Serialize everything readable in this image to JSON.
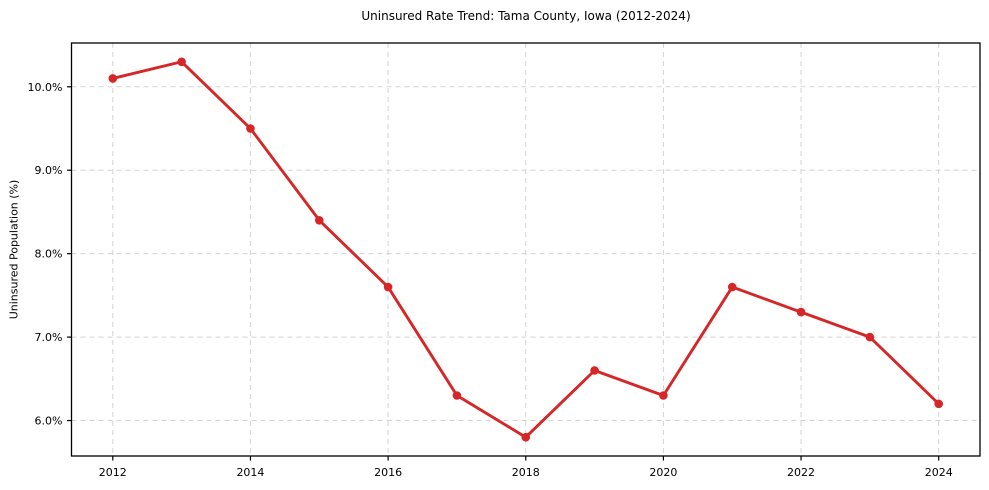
{
  "chart_data": {
    "type": "line",
    "title": "Uninsured Rate Trend: Tama County, Iowa (2012-2024)",
    "xlabel": "",
    "ylabel": "Uninsured Population (%)",
    "x": [
      2012,
      2013,
      2014,
      2015,
      2016,
      2017,
      2018,
      2019,
      2020,
      2021,
      2022,
      2023,
      2024
    ],
    "series": [
      {
        "name": "Uninsured rate",
        "values": [
          10.1,
          10.3,
          9.5,
          8.4,
          7.6,
          6.3,
          5.8,
          6.6,
          6.3,
          7.6,
          7.3,
          7.0,
          6.2
        ]
      }
    ],
    "xlim": [
      2011.4,
      2024.6
    ],
    "ylim": [
      5.575,
      10.525
    ],
    "x_ticks": [
      2012,
      2014,
      2016,
      2018,
      2020,
      2022,
      2024
    ],
    "x_tick_labels": [
      "2012",
      "2014",
      "2016",
      "2018",
      "2020",
      "2022",
      "2024"
    ],
    "y_ticks": [
      6.0,
      7.0,
      8.0,
      9.0,
      10.0
    ],
    "y_tick_labels": [
      "6.0%",
      "7.0%",
      "8.0%",
      "9.0%",
      "10.0%"
    ],
    "grid": true,
    "legend": "none",
    "line_color": "#d62728",
    "marker": "circle",
    "grid_color": "#d3d3d3",
    "axis_color": "#000000",
    "background": "#ffffff"
  }
}
